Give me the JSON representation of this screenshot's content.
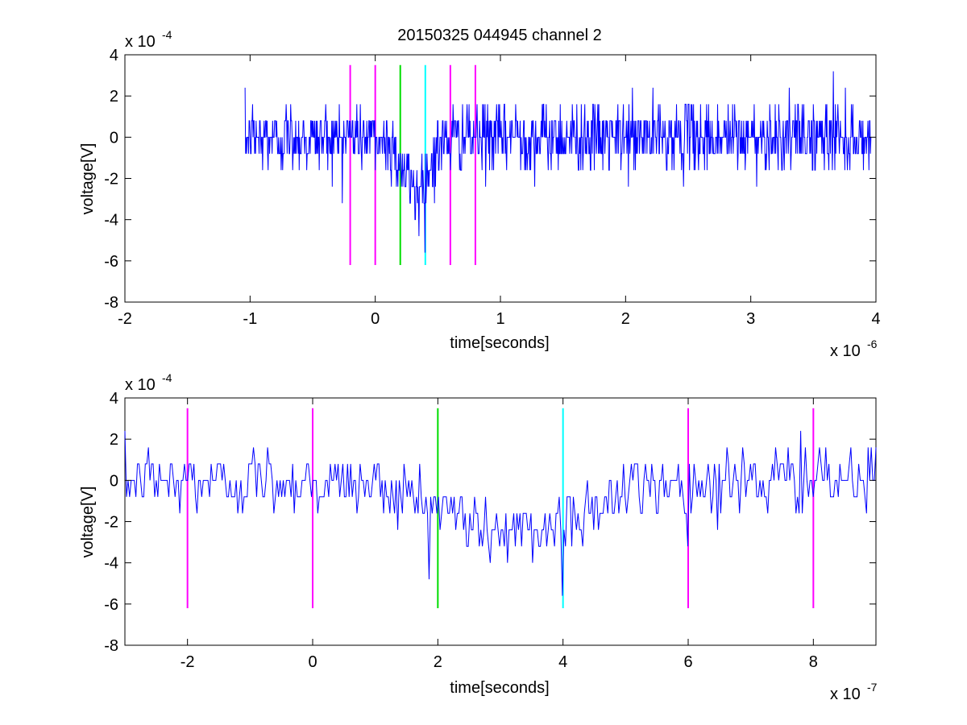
{
  "chart_data": [
    {
      "type": "line",
      "title": "20150325 044945 channel 2",
      "xlabel": "time[seconds]",
      "ylabel": "voltage[V]",
      "x_exponent_label": "x 10",
      "x_exponent": "-6",
      "y_exponent_label": "x 10",
      "y_exponent": "-4",
      "xlim": [
        -2e-06,
        4e-06
      ],
      "ylim": [
        -0.0008,
        0.0004
      ],
      "xticks": [
        -2e-06,
        -1e-06,
        0,
        1e-06,
        2e-06,
        3e-06,
        4e-06
      ],
      "xtick_labels": [
        "-2",
        "-1",
        "0",
        "1",
        "2",
        "3",
        "4"
      ],
      "yticks": [
        -0.0008,
        -0.0006,
        -0.0004,
        -0.0002,
        0,
        0.0002,
        0.0004
      ],
      "ytick_labels": [
        "-8",
        "-6",
        "-4",
        "-2",
        "0",
        "2",
        "4"
      ],
      "grid": false,
      "series": [
        {
          "color": "#0000ff",
          "t_start": -1.04e-06,
          "t_end": 3.96e-06,
          "noise_std": 0.00011,
          "quantization": 8e-05,
          "dip_center": 3.2e-07,
          "dip_width": 1.5e-07,
          "dip_depth": -0.00026,
          "min_point": {
            "x": 3.5e-07,
            "y": -0.00048
          },
          "max_point": {
            "x": 3.66e-06,
            "y": 0.00032
          }
        }
      ],
      "markers": [
        {
          "x": -2e-07,
          "color": "#ff00ff",
          "y_range": [
            -0.00062,
            0.00035
          ]
        },
        {
          "x": 0,
          "color": "#ff00ff",
          "y_range": [
            -0.00062,
            0.00035
          ]
        },
        {
          "x": 2e-07,
          "color": "#00dd00",
          "y_range": [
            -0.00062,
            0.00035
          ]
        },
        {
          "x": 4e-07,
          "color": "#00ffff",
          "y_range": [
            -0.00062,
            0.00035
          ]
        },
        {
          "x": 6e-07,
          "color": "#ff00ff",
          "y_range": [
            -0.00062,
            0.00035
          ]
        },
        {
          "x": 8e-07,
          "color": "#ff00ff",
          "y_range": [
            -0.00062,
            0.00035
          ]
        }
      ]
    },
    {
      "type": "line",
      "title": "",
      "xlabel": "time[seconds]",
      "ylabel": "voltage[V]",
      "x_exponent_label": "x 10",
      "x_exponent": "-7",
      "y_exponent_label": "x 10",
      "y_exponent": "-4",
      "xlim": [
        -3e-07,
        9e-07
      ],
      "ylim": [
        -0.0008,
        0.0004
      ],
      "xticks": [
        -2e-07,
        0,
        2e-07,
        4e-07,
        6e-07,
        8e-07
      ],
      "xtick_labels": [
        "-2",
        "0",
        "2",
        "4",
        "6",
        "8"
      ],
      "yticks": [
        -0.0008,
        -0.0006,
        -0.0004,
        -0.0002,
        0,
        0.0002,
        0.0004
      ],
      "ytick_labels": [
        "-8",
        "-6",
        "-4",
        "-2",
        "0",
        "2",
        "4"
      ],
      "grid": false,
      "series": [
        {
          "color": "#0000ff",
          "t_start": -3e-07,
          "t_end": 9e-07,
          "noise_std": 0.00011,
          "quantization": 8e-05,
          "dip_center": 3.2e-07,
          "dip_width": 1.5e-07,
          "dip_depth": -0.00026,
          "min_point": {
            "x": 4e-07,
            "y": -0.00056
          },
          "max_point": {
            "x": 7.8e-07,
            "y": 0.00024
          }
        }
      ],
      "markers": [
        {
          "x": -2e-07,
          "color": "#ff00ff",
          "y_range": [
            -0.00062,
            0.00035
          ]
        },
        {
          "x": 0,
          "color": "#ff00ff",
          "y_range": [
            -0.00062,
            0.00035
          ]
        },
        {
          "x": 2e-07,
          "color": "#00dd00",
          "y_range": [
            -0.00062,
            0.00035
          ]
        },
        {
          "x": 4e-07,
          "color": "#00ffff",
          "y_range": [
            -0.00062,
            0.00035
          ]
        },
        {
          "x": 6e-07,
          "color": "#ff00ff",
          "y_range": [
            -0.00062,
            0.00035
          ]
        },
        {
          "x": 8e-07,
          "color": "#ff00ff",
          "y_range": [
            -0.00062,
            0.00035
          ]
        }
      ]
    }
  ]
}
